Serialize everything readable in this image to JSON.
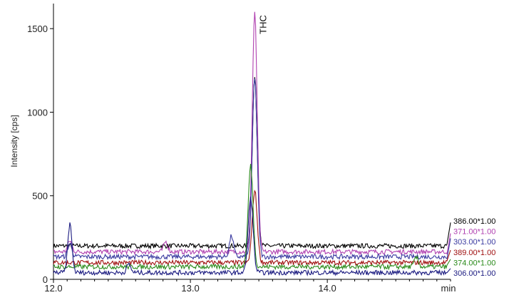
{
  "chart_data": {
    "type": "line",
    "title": "",
    "xlabel": "min",
    "ylabel": "Intensity [cps]",
    "xlim": [
      12.0,
      14.9
    ],
    "ylim": [
      0,
      1650
    ],
    "x_ticks": [
      12.0,
      13.0,
      14.0
    ],
    "x_tick_labels": [
      "12.0",
      "13.0",
      "14.0"
    ],
    "y_ticks": [
      0,
      500,
      1000,
      1500
    ],
    "y_tick_labels": [
      "0",
      "500",
      "1000",
      "1500"
    ],
    "grid": false,
    "legend": "right-edge labels",
    "annotations": [
      {
        "text": "THC",
        "x": 13.47,
        "y": 1590
      }
    ],
    "series": [
      {
        "name": "386.00*1.00",
        "color": "#000000",
        "baseline": 200,
        "peaks": [
          {
            "x": 13.47,
            "y": 1210
          }
        ],
        "end_value": 340
      },
      {
        "name": "371.00*1.00",
        "color": "#b040b0",
        "baseline": 165,
        "peaks": [
          {
            "x": 12.12,
            "y": 230
          },
          {
            "x": 12.82,
            "y": 225
          },
          {
            "x": 13.47,
            "y": 1590
          }
        ],
        "end_value": 275
      },
      {
        "name": "303.00*1.00",
        "color": "#3a3aa0",
        "baseline": 135,
        "peaks": [
          {
            "x": 12.12,
            "y": 215
          },
          {
            "x": 13.3,
            "y": 260
          },
          {
            "x": 13.47,
            "y": 1210
          }
        ],
        "end_value": 245
      },
      {
        "name": "389.00*1.00",
        "color": "#a01010",
        "baseline": 100,
        "peaks": [
          {
            "x": 13.47,
            "y": 530
          }
        ],
        "end_value": 175
      },
      {
        "name": "374.00*1.00",
        "color": "#2a8a1a",
        "baseline": 75,
        "peaks": [
          {
            "x": 13.44,
            "y": 680
          },
          {
            "x": 14.65,
            "y": 130
          }
        ],
        "end_value": 120
      },
      {
        "name": "306.00*1.00",
        "color": "#1a1a80",
        "baseline": 40,
        "peaks": [
          {
            "x": 12.12,
            "y": 330
          },
          {
            "x": 12.55,
            "y": 90
          },
          {
            "x": 13.44,
            "y": 490
          }
        ],
        "end_value": 65
      }
    ]
  }
}
